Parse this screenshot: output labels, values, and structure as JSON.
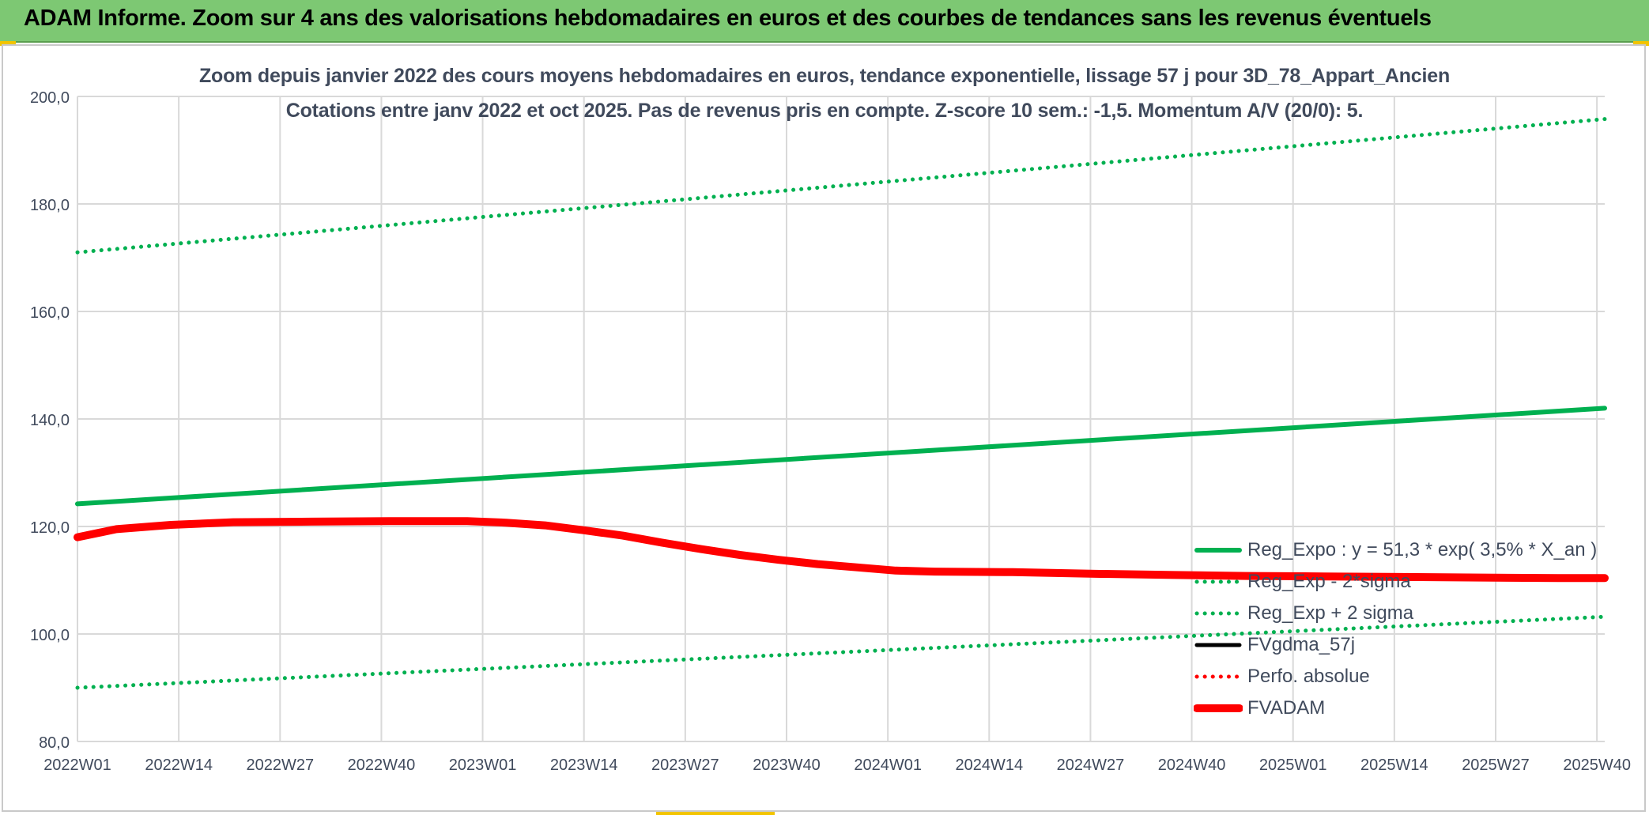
{
  "banner": {
    "title": "ADAM Informe. Zoom sur 4 ans des valorisations hebdomadaires en euros et des courbes de tendances sans les revenus éventuels"
  },
  "chart_data": {
    "type": "line",
    "title_line1": "Zoom depuis janvier 2022 des cours moyens hebdomadaires en euros, tendance exponentielle, lissage 57 j pour 3D_78_Appart_Ancien",
    "title_line2": "Cotations entre janv 2022 et oct 2025. Pas de revenus pris en compte. Z-score 10 sem.: -1,5. Momentum A/V (20/0): 5.",
    "categories": [
      "2022W01",
      "2022W14",
      "2022W27",
      "2022W40",
      "2023W01",
      "2023W14",
      "2023W27",
      "2023W40",
      "2024W01",
      "2024W14",
      "2024W27",
      "2024W40",
      "2025W01",
      "2025W14",
      "2025W27",
      "2025W40"
    ],
    "x_range_weeks": [
      0,
      196
    ],
    "ylim": [
      80,
      200
    ],
    "yticks": [
      "80,0",
      "100,0",
      "120,0",
      "140,0",
      "160,0",
      "180,0",
      "200,0"
    ],
    "ytick_values": [
      80,
      100,
      120,
      140,
      160,
      180,
      200
    ],
    "grid": true,
    "legend_position": "right",
    "series": [
      {
        "name": "Reg_Expo : y = 51,3 * exp( 3,5% *  X_an )",
        "style": "solid-thick",
        "color": "#00b050",
        "points": [
          [
            0,
            124.2
          ],
          [
            196,
            142.0
          ]
        ]
      },
      {
        "name": "Reg_Exp - 2*sigma",
        "style": "dotted",
        "color": "#00b050",
        "points": [
          [
            0,
            90.0
          ],
          [
            196,
            103.2
          ]
        ]
      },
      {
        "name": "Reg_Exp + 2 sigma",
        "style": "dotted",
        "color": "#00b050",
        "points": [
          [
            0,
            171.0
          ],
          [
            196,
            195.8
          ]
        ]
      },
      {
        "name": "FVgdma_57j",
        "style": "solid",
        "color": "#000000",
        "points": [
          [
            0,
            118.0
          ],
          [
            5,
            119.5
          ],
          [
            12,
            120.3
          ],
          [
            20,
            120.8
          ],
          [
            30,
            120.9
          ],
          [
            40,
            121.0
          ],
          [
            50,
            121.0
          ],
          [
            55,
            120.7
          ],
          [
            60,
            120.2
          ],
          [
            65,
            119.3
          ],
          [
            70,
            118.3
          ],
          [
            75,
            117.0
          ],
          [
            80,
            115.8
          ],
          [
            85,
            114.7
          ],
          [
            90,
            113.8
          ],
          [
            95,
            113.0
          ],
          [
            100,
            112.5
          ],
          [
            105,
            112.0
          ],
          [
            110,
            111.7
          ],
          [
            120,
            111.5
          ],
          [
            130,
            111.2
          ],
          [
            140,
            111.0
          ],
          [
            150,
            110.8
          ],
          [
            160,
            110.7
          ],
          [
            170,
            110.6
          ],
          [
            180,
            110.5
          ],
          [
            190,
            110.4
          ],
          [
            196,
            110.4
          ]
        ]
      },
      {
        "name": "Perfo. absolue",
        "style": "dotted",
        "color": "#ff0000",
        "points": [
          [
            0,
            118.0
          ],
          [
            5,
            119.5
          ],
          [
            12,
            120.3
          ],
          [
            20,
            120.8
          ],
          [
            30,
            120.9
          ],
          [
            40,
            121.0
          ],
          [
            50,
            121.0
          ],
          [
            55,
            120.7
          ],
          [
            60,
            120.2
          ],
          [
            65,
            119.3
          ],
          [
            70,
            118.3
          ],
          [
            75,
            117.0
          ],
          [
            80,
            115.8
          ],
          [
            85,
            114.7
          ],
          [
            90,
            113.8
          ],
          [
            95,
            113.0
          ],
          [
            100,
            112.4
          ],
          [
            105,
            111.8
          ],
          [
            110,
            111.6
          ],
          [
            120,
            111.5
          ],
          [
            130,
            111.2
          ],
          [
            140,
            111.0
          ],
          [
            150,
            110.8
          ],
          [
            160,
            110.7
          ],
          [
            170,
            110.6
          ],
          [
            180,
            110.5
          ],
          [
            190,
            110.4
          ],
          [
            196,
            110.4
          ]
        ]
      },
      {
        "name": "FVADAM",
        "style": "solid-thick",
        "color": "#ff0000",
        "points": [
          [
            0,
            118.0
          ],
          [
            5,
            119.5
          ],
          [
            12,
            120.3
          ],
          [
            20,
            120.8
          ],
          [
            30,
            120.9
          ],
          [
            40,
            121.0
          ],
          [
            50,
            121.0
          ],
          [
            55,
            120.7
          ],
          [
            60,
            120.2
          ],
          [
            65,
            119.3
          ],
          [
            70,
            118.3
          ],
          [
            75,
            117.0
          ],
          [
            80,
            115.8
          ],
          [
            85,
            114.7
          ],
          [
            90,
            113.8
          ],
          [
            95,
            113.0
          ],
          [
            100,
            112.4
          ],
          [
            105,
            111.8
          ],
          [
            110,
            111.6
          ],
          [
            120,
            111.5
          ],
          [
            130,
            111.2
          ],
          [
            140,
            111.0
          ],
          [
            150,
            110.8
          ],
          [
            160,
            110.7
          ],
          [
            170,
            110.6
          ],
          [
            180,
            110.5
          ],
          [
            190,
            110.4
          ],
          [
            196,
            110.4
          ]
        ]
      }
    ]
  },
  "colors": {
    "banner_bg": "#7dc873",
    "grid": "#d9d9d9",
    "axis_text": "#404a5c",
    "green": "#00b050",
    "red": "#ff0000",
    "black": "#000000"
  }
}
